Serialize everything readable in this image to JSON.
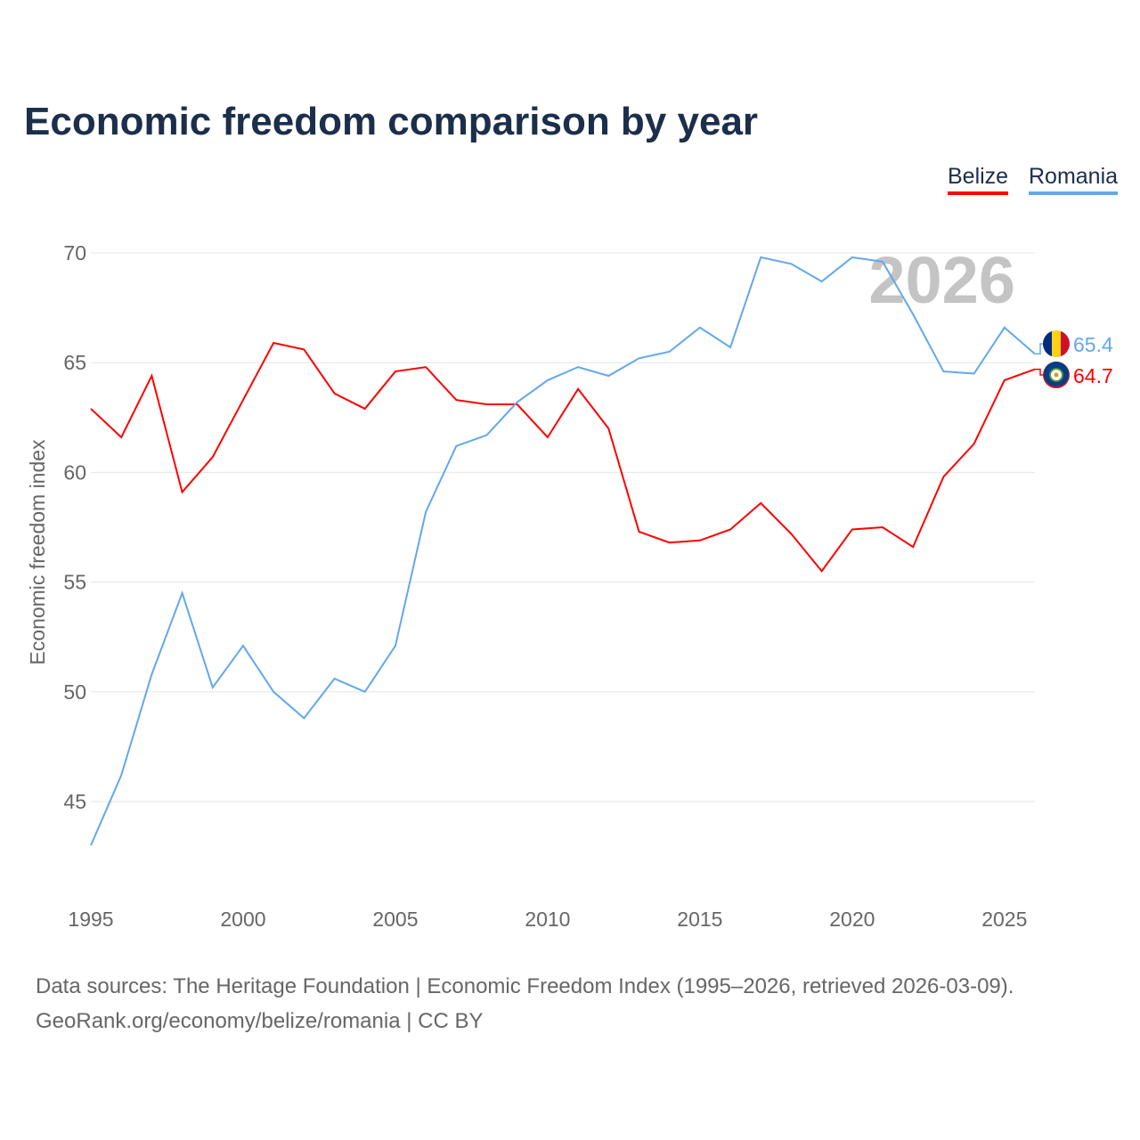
{
  "title": "Economic freedom comparison by year",
  "year_watermark": "2026",
  "source_line1": "Data sources: The Heritage Foundation | Economic Freedom Index (1995–2026, retrieved 2026-03-09).",
  "source_line2": "GeoRank.org/economy/belize/romania | CC BY",
  "chart_data": {
    "type": "line",
    "title": "Economic freedom comparison by year",
    "xlabel": "",
    "ylabel": "Economic freedom index",
    "xlim": [
      1995,
      2026
    ],
    "ylim": [
      42,
      71
    ],
    "xticks": [
      1995,
      2000,
      2005,
      2010,
      2015,
      2020,
      2025
    ],
    "yticks": [
      45,
      50,
      55,
      60,
      65,
      70
    ],
    "grid": true,
    "legend": "top-right",
    "x": [
      1995,
      1996,
      1997,
      1998,
      1999,
      2000,
      2001,
      2002,
      2003,
      2004,
      2005,
      2006,
      2007,
      2008,
      2009,
      2010,
      2011,
      2012,
      2013,
      2014,
      2015,
      2016,
      2017,
      2018,
      2019,
      2020,
      2021,
      2022,
      2023,
      2024,
      2025,
      2026
    ],
    "series": [
      {
        "name": "Belize",
        "color": "#ff0000",
        "end_label": "64.7",
        "values": [
          62.9,
          61.6,
          64.4,
          59.1,
          60.7,
          63.3,
          65.9,
          65.6,
          63.6,
          62.9,
          64.6,
          64.8,
          63.3,
          63.1,
          63.1,
          61.6,
          63.8,
          62.0,
          57.3,
          56.8,
          56.9,
          57.4,
          58.6,
          57.2,
          55.5,
          57.4,
          57.5,
          56.6,
          59.8,
          61.3,
          64.2,
          64.7
        ]
      },
      {
        "name": "Romania",
        "color": "#62a8eb",
        "end_label": "65.4",
        "values": [
          43.0,
          46.2,
          50.8,
          54.5,
          50.2,
          52.1,
          50.0,
          48.8,
          50.6,
          50.0,
          52.1,
          58.2,
          61.2,
          61.7,
          63.2,
          64.2,
          64.8,
          64.4,
          65.2,
          65.5,
          66.6,
          65.7,
          69.8,
          69.5,
          68.7,
          69.8,
          69.6,
          67.2,
          64.6,
          64.5,
          66.6,
          65.4
        ]
      }
    ]
  }
}
